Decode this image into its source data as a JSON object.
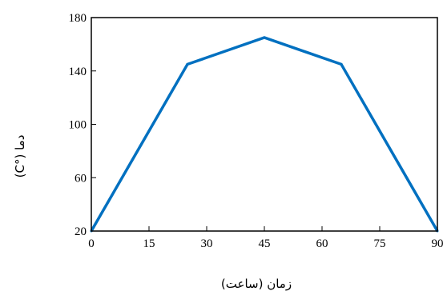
{
  "chart_data": {
    "type": "line",
    "title": "",
    "xlabel": "زمان (ساعت)",
    "ylabel": "دما (°C)",
    "xlim": [
      0,
      90
    ],
    "ylim": [
      20,
      180
    ],
    "xticks": [
      0,
      15,
      30,
      45,
      60,
      75,
      90
    ],
    "yticks": [
      20,
      60,
      100,
      140,
      180
    ],
    "grid": false,
    "legend": "none",
    "series": [
      {
        "color": "#0070C0",
        "x": [
          0,
          25,
          45,
          65,
          90
        ],
        "y": [
          20,
          145,
          165,
          145,
          20
        ]
      }
    ]
  }
}
